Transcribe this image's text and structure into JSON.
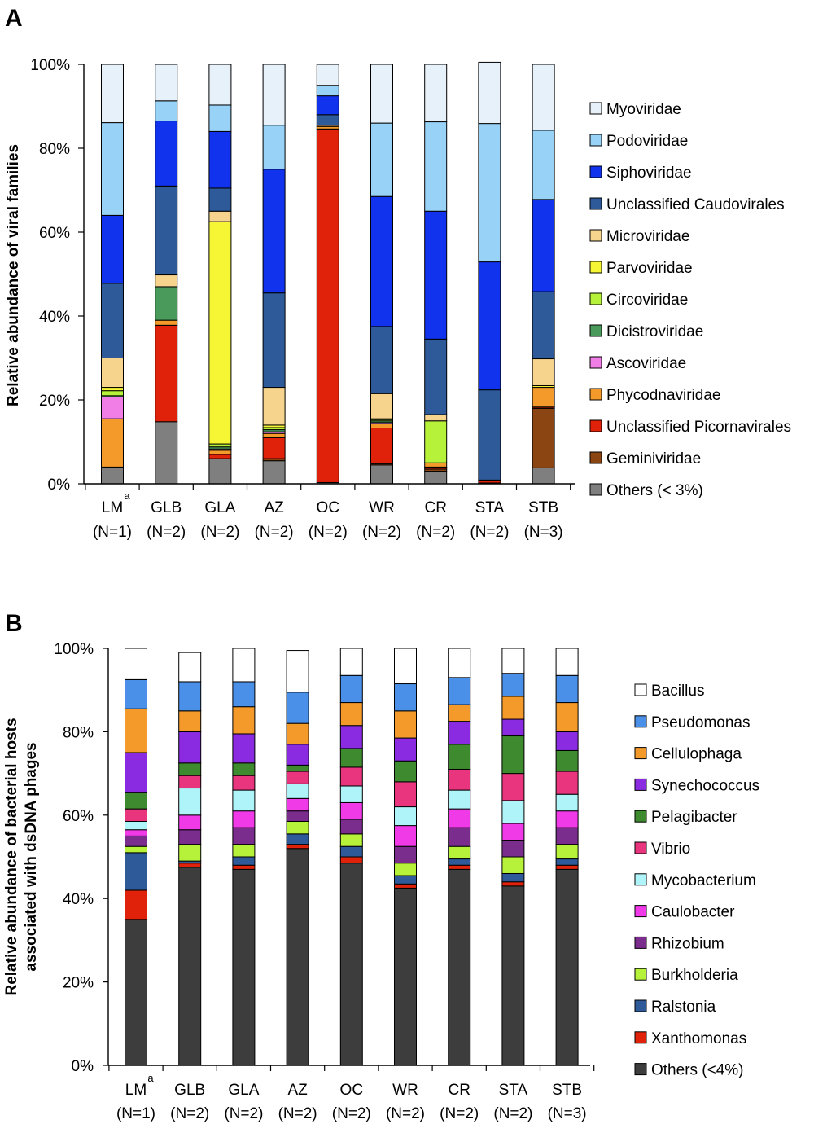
{
  "chart_data": [
    {
      "panel": "A",
      "type": "bar",
      "stacked": true,
      "ylabel": "Relative abundance of viral families",
      "ylim": [
        0,
        100
      ],
      "yticks": [
        "0%",
        "20%",
        "40%",
        "60%",
        "80%",
        "100%"
      ],
      "categories": [
        "LM",
        "GLB",
        "GLA",
        "AZ",
        "OC",
        "WR",
        "CR",
        "STA",
        "STB"
      ],
      "category_superscripts": [
        "a",
        "",
        "",
        "",
        "",
        "",
        "",
        "",
        ""
      ],
      "category_n": [
        "(N=1)",
        "(N=2)",
        "(N=2)",
        "(N=2)",
        "(N=2)",
        "(N=2)",
        "(N=2)",
        "(N=2)",
        "(N=3)"
      ],
      "series": [
        {
          "name": "Others (< 3%)",
          "color": "#7f7f7f",
          "values": [
            3.8,
            14.8,
            6.0,
            5.5,
            0.3,
            4.5,
            3.0,
            0.2,
            3.8
          ]
        },
        {
          "name": "Geminiviridae",
          "color": "#8b4513",
          "values": [
            0.2,
            0.0,
            0.0,
            0.5,
            0.0,
            0.3,
            0.5,
            0.0,
            14.2
          ]
        },
        {
          "name": "Unclassified Picornavirales",
          "color": "#e0220a",
          "values": [
            0.0,
            23.0,
            1.0,
            5.0,
            84.3,
            8.5,
            0.5,
            0.5,
            0.3
          ]
        },
        {
          "name": "Phycodnaviridae",
          "color": "#f39a2b",
          "values": [
            11.5,
            1.2,
            1.0,
            1.0,
            0.6,
            1.0,
            1.0,
            0.2,
            4.7
          ]
        },
        {
          "name": "Ascoviridae",
          "color": "#f07ee6",
          "values": [
            5.2,
            0.0,
            0.3,
            0.4,
            0.0,
            0.3,
            0.0,
            0.0,
            0.0
          ]
        },
        {
          "name": "Dicistroviridae",
          "color": "#4a9a5b",
          "values": [
            0.3,
            8.0,
            0.5,
            0.5,
            0.0,
            0.4,
            0.0,
            0.0,
            0.0
          ]
        },
        {
          "name": "Circoviridae",
          "color": "#b6f23a",
          "values": [
            1.2,
            0.0,
            0.7,
            0.5,
            0.0,
            0.3,
            10.0,
            0.0,
            0.0
          ]
        },
        {
          "name": "Parvoviridae",
          "color": "#f6f634",
          "values": [
            0.8,
            0.0,
            53.0,
            0.6,
            0.0,
            0.2,
            0.0,
            0.0,
            0.4
          ]
        },
        {
          "name": "Microviridae",
          "color": "#f6d48e",
          "values": [
            7.0,
            2.8,
            2.5,
            9.0,
            0.3,
            6.0,
            1.5,
            0.0,
            6.4
          ]
        },
        {
          "name": "Unclassified Caudovirales",
          "color": "#2e5a99",
          "values": [
            17.8,
            21.2,
            5.5,
            22.5,
            2.5,
            16.0,
            18.0,
            21.5,
            16.0
          ]
        },
        {
          "name": "Siphoviridae",
          "color": "#1133ee",
          "values": [
            16.2,
            15.5,
            13.5,
            29.5,
            4.5,
            31.0,
            30.5,
            30.5,
            22.0
          ]
        },
        {
          "name": "Podoviridae",
          "color": "#99d2f7",
          "values": [
            22.1,
            4.8,
            6.3,
            10.5,
            2.5,
            17.5,
            21.3,
            33.0,
            16.5
          ]
        },
        {
          "name": "Myoviridae",
          "color": "#e6f1fa",
          "values": [
            13.9,
            8.7,
            9.7,
            14.5,
            5.0,
            14.0,
            13.7,
            14.6,
            15.7
          ]
        }
      ],
      "legend": [
        "Myoviridae",
        "Podoviridae",
        "Siphoviridae",
        "Unclassified Caudovirales",
        "Microviridae",
        "Parvoviridae",
        "Circoviridae",
        "Dicistroviridae",
        "Ascoviridae",
        "Phycodnaviridae",
        "Unclassified Picornavirales",
        "Geminiviridae",
        "Others (< 3%)"
      ]
    },
    {
      "panel": "B",
      "type": "bar",
      "stacked": true,
      "ylabel": "Relative abundance of bacterial hosts associated with dsDNA phages",
      "ylabel_lines": [
        "Relative abundance of bacterial hosts",
        "associated with dsDNA phages"
      ],
      "ylim": [
        0,
        100
      ],
      "yticks": [
        "0%",
        "20%",
        "40%",
        "60%",
        "80%",
        "100%"
      ],
      "categories": [
        "LM",
        "GLB",
        "GLA",
        "AZ",
        "OC",
        "WR",
        "CR",
        "STA",
        "STB"
      ],
      "category_superscripts": [
        "a",
        "",
        "",
        "",
        "",
        "",
        "",
        "",
        ""
      ],
      "category_n": [
        "(N=1)",
        "(N=2)",
        "(N=2)",
        "(N=2)",
        "(N=2)",
        "(N=2)",
        "(N=2)",
        "(N=2)",
        "(N=3)"
      ],
      "series": [
        {
          "name": "Others (<4%)",
          "color": "#3d3d3d",
          "values": [
            35.0,
            47.5,
            47.0,
            52.0,
            48.5,
            42.5,
            47.0,
            43.0,
            47.0
          ]
        },
        {
          "name": "Xanthomonas",
          "color": "#e0220a",
          "values": [
            7.0,
            1.0,
            1.0,
            1.0,
            1.5,
            1.0,
            1.0,
            1.0,
            1.0
          ]
        },
        {
          "name": "Ralstonia",
          "color": "#2e5a99",
          "values": [
            9.0,
            0.5,
            2.0,
            2.5,
            2.5,
            2.0,
            1.5,
            2.0,
            1.5
          ]
        },
        {
          "name": "Burkholderia",
          "color": "#b6f23a",
          "values": [
            1.5,
            4.0,
            3.0,
            3.0,
            3.0,
            3.0,
            3.0,
            4.0,
            3.5
          ]
        },
        {
          "name": "Rhizobium",
          "color": "#7b2d8e",
          "values": [
            2.5,
            3.5,
            4.0,
            2.5,
            3.5,
            4.0,
            4.5,
            4.0,
            4.0
          ]
        },
        {
          "name": "Caulobacter",
          "color": "#f03ae8",
          "values": [
            1.5,
            3.5,
            4.0,
            3.0,
            4.0,
            5.0,
            4.5,
            4.0,
            4.0
          ]
        },
        {
          "name": "Mycobacterium",
          "color": "#aef4f8",
          "values": [
            2.0,
            6.5,
            5.0,
            3.5,
            4.0,
            4.5,
            4.5,
            5.5,
            4.0
          ]
        },
        {
          "name": "Vibrio",
          "color": "#e8357e",
          "values": [
            3.0,
            3.0,
            3.5,
            3.0,
            4.5,
            6.0,
            5.0,
            6.5,
            5.5
          ]
        },
        {
          "name": "Pelagibacter",
          "color": "#3e8a2e",
          "values": [
            4.0,
            3.0,
            3.0,
            1.5,
            4.5,
            5.0,
            6.0,
            9.0,
            5.0
          ]
        },
        {
          "name": "Synechococcus",
          "color": "#8a2be2",
          "values": [
            9.5,
            7.5,
            7.0,
            5.0,
            5.5,
            5.5,
            5.5,
            4.0,
            4.5
          ]
        },
        {
          "name": "Cellulophaga",
          "color": "#f39a2b",
          "values": [
            10.5,
            5.0,
            6.5,
            5.0,
            5.5,
            6.5,
            4.0,
            5.5,
            7.0
          ]
        },
        {
          "name": "Pseudomonas",
          "color": "#4a90e8",
          "values": [
            7.0,
            7.0,
            6.0,
            7.5,
            6.5,
            6.5,
            6.5,
            5.5,
            6.5
          ]
        },
        {
          "name": "Bacillus",
          "color": "#ffffff",
          "values": [
            7.5,
            7.0,
            8.0,
            10.0,
            6.5,
            8.5,
            7.0,
            6.0,
            6.5
          ]
        }
      ],
      "legend": [
        "Bacillus",
        "Pseudomonas",
        "Cellulophaga",
        "Synechococcus",
        "Pelagibacter",
        "Vibrio",
        "Mycobacterium",
        "Caulobacter",
        "Rhizobium",
        "Burkholderia",
        "Ralstonia",
        "Xanthomonas",
        "Others (<4%)"
      ]
    }
  ]
}
